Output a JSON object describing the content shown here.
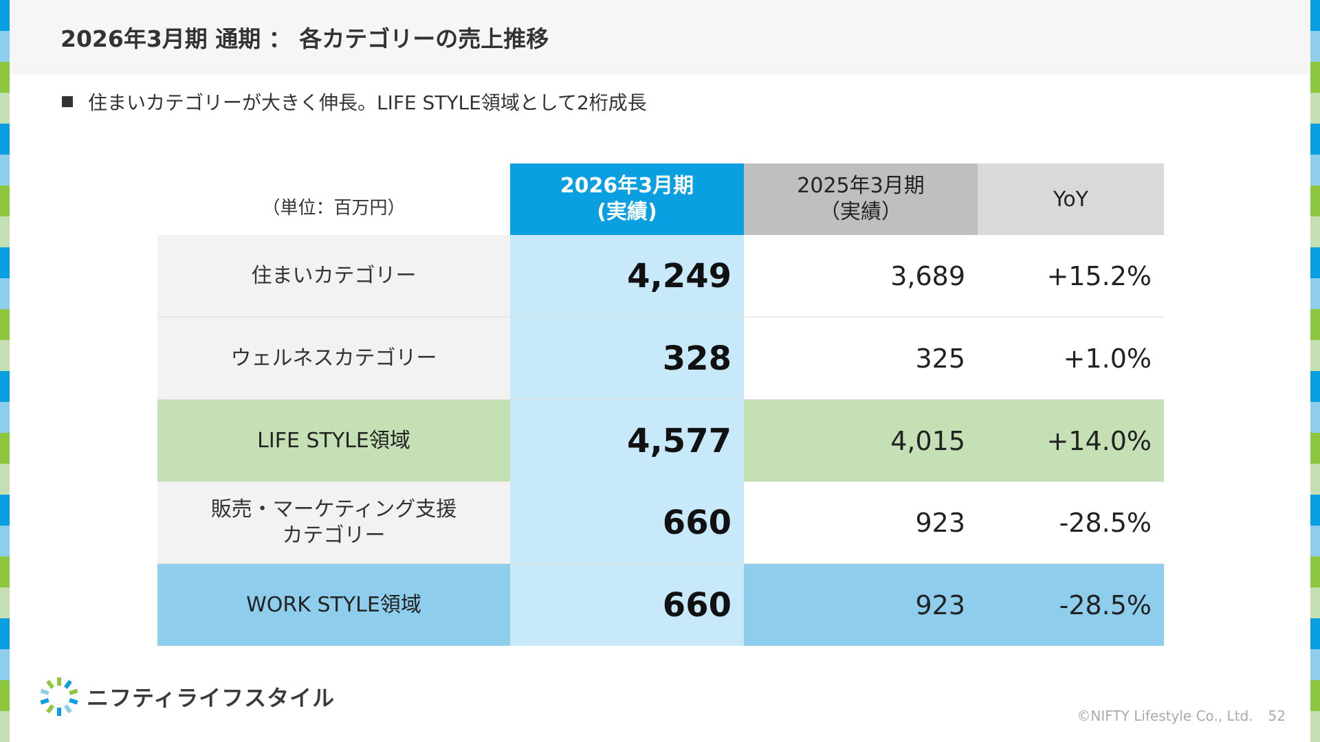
{
  "title": "2026年3月期 通期 ： 各カテゴリーの売上推移",
  "bullet": "住まいカテゴリーが大きく伸長。LIFE STYLE領域として2桁成長",
  "table": {
    "unit_label": "（単位：百万円）",
    "col_current_line1": "2026年3月期",
    "col_current_line2": "(実績)",
    "col_previous_line1": "2025年3月期",
    "col_previous_line2": "（実績）",
    "col_yoy": "YoY",
    "rows": [
      {
        "name": "住まいカテゴリー",
        "name2": "",
        "current": "4,249",
        "previous": "3,689",
        "yoy": "+15.2%"
      },
      {
        "name": "ウェルネスカテゴリー",
        "name2": "",
        "current": "328",
        "previous": "325",
        "yoy": "+1.0%"
      },
      {
        "name": "LIFE STYLE領域",
        "name2": "",
        "current": "4,577",
        "previous": "4,015",
        "yoy": "+14.0%"
      },
      {
        "name": "販売・マーケティング支援",
        "name2": "カテゴリー",
        "current": "660",
        "previous": "923",
        "yoy": "-28.5%"
      },
      {
        "name": "WORK STYLE領域",
        "name2": "",
        "current": "660",
        "previous": "923",
        "yoy": "-28.5%"
      }
    ]
  },
  "logo": {
    "text": "ニフティライフスタイル",
    "icon": "burst-logo-icon"
  },
  "footer": {
    "copyright": "©NIFTY Lifestyle Co., Ltd.",
    "page": "52"
  },
  "colors": {
    "current_header": "#0a9fe0",
    "current_column": "#c7e9f9",
    "life_style_row": "#c5e0b4",
    "work_style_row": "#8ecdeb"
  }
}
